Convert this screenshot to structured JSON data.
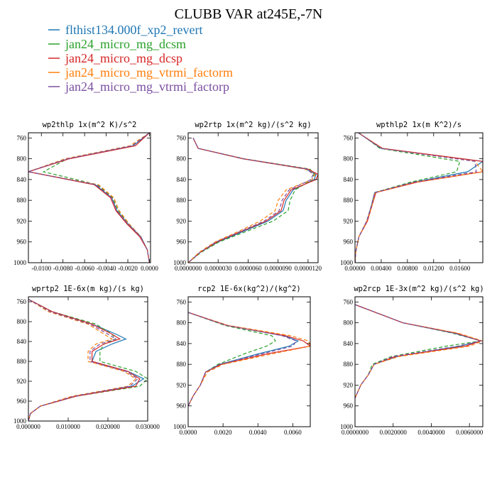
{
  "title": "CLUBB VAR at245E,-7N",
  "legend": [
    {
      "label": "flthist134.000f_xp2_revert",
      "color": "#1f77b4"
    },
    {
      "label": "jan24_micro_mg_dcsm",
      "color": "#2ca02c"
    },
    {
      "label": "jan24_micro_mg_dcsp",
      "color": "#d62728"
    },
    {
      "label": "jan24_micro_mg_vtrmi_factorm",
      "color": "#ff7f0e"
    },
    {
      "label": "jan24_micro_mg_vtrmi_factorp",
      "color": "#7b4fa0"
    }
  ],
  "chart_data": [
    {
      "type": "line",
      "title": "wp2thlp  1x(m^2 K)/s^2",
      "ylim": [
        1000,
        750
      ],
      "yticks": [
        {
          "v": 760,
          "l": "760"
        },
        {
          "v": 800,
          "l": "800"
        },
        {
          "v": 840,
          "l": "840"
        },
        {
          "v": 880,
          "l": "880"
        },
        {
          "v": 920,
          "l": "920"
        },
        {
          "v": 960,
          "l": "960"
        },
        {
          "v": 1000,
          "l": "1000"
        }
      ],
      "xlim": [
        -0.0112,
        0.0001
      ],
      "xticks": [
        {
          "v": -0.01,
          "l": "-0.0100"
        },
        {
          "v": -0.008,
          "l": "-0.0080"
        },
        {
          "v": -0.006,
          "l": "-0.0060"
        },
        {
          "v": -0.004,
          "l": "-0.0040"
        },
        {
          "v": -0.002,
          "l": "-0.0020"
        },
        {
          "v": 0.0,
          "l": "0.0000"
        }
      ],
      "y": [
        750,
        775,
        800,
        825,
        850,
        875,
        900,
        925,
        950,
        975,
        1000
      ],
      "series": [
        {
          "x": [
            0.0,
            -0.0015,
            -0.0075,
            -0.0112,
            -0.005,
            -0.0035,
            -0.003,
            -0.002,
            -0.0008,
            -0.0002,
            0.0
          ]
        },
        {
          "x": [
            0.0,
            -0.0016,
            -0.0076,
            -0.0098,
            -0.0048,
            -0.0034,
            -0.0029,
            -0.0019,
            -0.0008,
            -0.0002,
            0.0
          ]
        },
        {
          "x": [
            0.0,
            -0.0013,
            -0.0074,
            -0.0112,
            -0.0051,
            -0.0036,
            -0.0031,
            -0.0021,
            -0.0009,
            -0.0002,
            0.0
          ]
        },
        {
          "x": [
            0.0,
            -0.0018,
            -0.0078,
            -0.0112,
            -0.0047,
            -0.0033,
            -0.0028,
            -0.0019,
            -0.0008,
            -0.0002,
            0.0
          ]
        },
        {
          "x": [
            0.0,
            -0.0016,
            -0.0076,
            -0.0112,
            -0.0049,
            -0.0035,
            -0.003,
            -0.002,
            -0.0008,
            -0.0002,
            0.0
          ]
        }
      ]
    },
    {
      "type": "line",
      "title": "wp2rtp  1x(m^2 kg)/(s^2 kg)",
      "ylim": [
        1000,
        750
      ],
      "yticks": [
        {
          "v": 760,
          "l": "760"
        },
        {
          "v": 800,
          "l": "800"
        },
        {
          "v": 840,
          "l": "840"
        },
        {
          "v": 880,
          "l": "880"
        },
        {
          "v": 920,
          "l": "920"
        },
        {
          "v": 960,
          "l": "960"
        },
        {
          "v": 1000,
          "l": "1000"
        }
      ],
      "xlim": [
        0.0,
        1.3e-05
      ],
      "xticks": [
        {
          "v": 0.0,
          "l": "0.0000000"
        },
        {
          "v": 3e-06,
          "l": "0.0000030"
        },
        {
          "v": 6e-06,
          "l": "0.0000060"
        },
        {
          "v": 9e-06,
          "l": "0.0000090"
        },
        {
          "v": 1.2e-05,
          "l": "0.0000120"
        }
      ],
      "y": [
        760,
        780,
        800,
        820,
        830,
        840,
        860,
        880,
        900,
        920,
        940,
        960,
        980,
        1000
      ],
      "series": [
        {
          "x": [
            5e-07,
            1e-06,
            5.5e-06,
            1.18e-05,
            1.28e-05,
            1.26e-05,
            1.05e-05,
            9.8e-06,
            9.5e-06,
            8e-06,
            5.5e-06,
            3e-06,
            1.2e-06,
            0.0
          ]
        },
        {
          "x": [
            5e-07,
            1e-06,
            5.6e-06,
            1.22e-05,
            1.26e-05,
            1.24e-05,
            1.07e-05,
            1.02e-05,
            1e-05,
            8.5e-06,
            5.8e-06,
            3.1e-06,
            1.3e-06,
            0.0
          ]
        },
        {
          "x": [
            5e-07,
            1e-06,
            5.5e-06,
            1.2e-05,
            1.3e-05,
            1.28e-05,
            1.03e-05,
            9.6e-06,
            9.3e-06,
            7.8e-06,
            5.3e-06,
            2.9e-06,
            1.2e-06,
            0.0
          ]
        },
        {
          "x": [
            5e-07,
            1e-06,
            5.4e-06,
            1.17e-05,
            1.27e-05,
            1.24e-05,
            9.8e-06,
            9e-06,
            8.7e-06,
            7.2e-06,
            5e-06,
            2.7e-06,
            1.1e-06,
            0.0
          ]
        },
        {
          "x": [
            5e-07,
            1e-06,
            5.5e-06,
            1.19e-05,
            1.25e-05,
            1.23e-05,
            1.01e-05,
            9.4e-06,
            9.1e-06,
            7.6e-06,
            5.2e-06,
            2.8e-06,
            1.2e-06,
            0.0
          ]
        }
      ]
    },
    {
      "type": "line",
      "title": "wpthlp2  1x(m K^2)/s",
      "ylim": [
        1000,
        750
      ],
      "yticks": [
        {
          "v": 760,
          "l": "760"
        },
        {
          "v": 800,
          "l": "800"
        },
        {
          "v": 840,
          "l": "840"
        },
        {
          "v": 880,
          "l": "880"
        },
        {
          "v": 920,
          "l": "920"
        },
        {
          "v": 960,
          "l": "960"
        },
        {
          "v": 1000,
          "l": "1000"
        }
      ],
      "xlim": [
        0.0,
        0.0195
      ],
      "xticks": [
        {
          "v": 0.0,
          "l": "0.00000"
        },
        {
          "v": 0.004,
          "l": "0.00400"
        },
        {
          "v": 0.008,
          "l": "0.00800"
        },
        {
          "v": 0.012,
          "l": "0.01200"
        },
        {
          "v": 0.016,
          "l": "0.01600"
        }
      ],
      "y": [
        750,
        780,
        805,
        825,
        845,
        865,
        890,
        920,
        950,
        980,
        1000
      ],
      "series": [
        {
          "x": [
            0.0005,
            0.004,
            0.0195,
            0.0172,
            0.009,
            0.003,
            0.0025,
            0.0018,
            0.0006,
            0.0001,
            0.0
          ]
        },
        {
          "x": [
            0.0006,
            0.0038,
            0.016,
            0.0155,
            0.0085,
            0.003,
            0.0025,
            0.0018,
            0.0006,
            0.0001,
            0.0
          ]
        },
        {
          "x": [
            0.0005,
            0.0042,
            0.0195,
            0.0195,
            0.0095,
            0.0032,
            0.0026,
            0.0019,
            0.0006,
            0.0001,
            0.0
          ]
        },
        {
          "x": [
            0.0005,
            0.0041,
            0.0183,
            0.0195,
            0.0092,
            0.0031,
            0.0026,
            0.0018,
            0.0006,
            0.0001,
            0.0
          ]
        },
        {
          "x": [
            0.0005,
            0.004,
            0.0183,
            0.0185,
            0.009,
            0.003,
            0.0025,
            0.0018,
            0.0006,
            0.0001,
            0.0
          ]
        }
      ]
    },
    {
      "type": "line",
      "title": "wprtp2  1E-6x(m kg)/(s kg)",
      "ylim": [
        1000,
        750
      ],
      "yticks": [
        {
          "v": 760,
          "l": "760"
        },
        {
          "v": 800,
          "l": "800"
        },
        {
          "v": 840,
          "l": "840"
        },
        {
          "v": 880,
          "l": "880"
        },
        {
          "v": 920,
          "l": "920"
        },
        {
          "v": 960,
          "l": "960"
        },
        {
          "v": 1000,
          "l": "1000"
        }
      ],
      "xlim": [
        0.0,
        0.03
      ],
      "xticks": [
        {
          "v": 0.0,
          "l": "0.000000"
        },
        {
          "v": 0.01,
          "l": "0.010000"
        },
        {
          "v": 0.02,
          "l": "0.020000"
        },
        {
          "v": 0.03,
          "l": "0.030000"
        }
      ],
      "y": [
        755,
        780,
        805,
        825,
        835,
        845,
        860,
        880,
        900,
        915,
        930,
        950,
        970,
        985,
        1000
      ],
      "series": [
        {
          "x": [
            0.0,
            0.006,
            0.016,
            0.022,
            0.0245,
            0.021,
            0.017,
            0.016,
            0.025,
            0.029,
            0.026,
            0.012,
            0.003,
            0.0005,
            0.0
          ]
        },
        {
          "x": [
            0.0,
            0.006,
            0.017,
            0.021,
            0.022,
            0.019,
            0.018,
            0.018,
            0.027,
            0.03,
            0.028,
            0.012,
            0.003,
            0.0005,
            0.0
          ]
        },
        {
          "x": [
            0.0,
            0.006,
            0.016,
            0.021,
            0.023,
            0.019,
            0.016,
            0.016,
            0.025,
            0.028,
            0.027,
            0.012,
            0.003,
            0.0005,
            0.0
          ]
        },
        {
          "x": [
            0.0,
            0.005,
            0.015,
            0.019,
            0.021,
            0.017,
            0.015,
            0.015,
            0.024,
            0.027,
            0.025,
            0.011,
            0.003,
            0.0005,
            0.0
          ]
        },
        {
          "x": [
            0.0,
            0.0055,
            0.0155,
            0.02,
            0.022,
            0.018,
            0.0155,
            0.0155,
            0.0245,
            0.0275,
            0.0255,
            0.0115,
            0.003,
            0.0005,
            0.0
          ]
        }
      ]
    },
    {
      "type": "line",
      "title": "rcp2  1E-6x(kg^2)/(kg^2)",
      "ylim": [
        1000,
        750
      ],
      "yticks": [
        {
          "v": 760,
          "l": "760"
        },
        {
          "v": 800,
          "l": "800"
        },
        {
          "v": 840,
          "l": "840"
        },
        {
          "v": 880,
          "l": "880"
        },
        {
          "v": 920,
          "l": "920"
        },
        {
          "v": 960,
          "l": "960"
        },
        {
          "v": 1000,
          "l": "1000"
        }
      ],
      "xlim": [
        0.0,
        0.007
      ],
      "xticks": [
        {
          "v": 0.0,
          "l": "0.0000"
        },
        {
          "v": 0.002,
          "l": "0.0020"
        },
        {
          "v": 0.004,
          "l": "0.0040"
        },
        {
          "v": 0.006,
          "l": "0.0060"
        }
      ],
      "y": [
        780,
        805,
        825,
        835,
        845,
        860,
        880,
        895,
        920,
        940,
        960
      ],
      "series": [
        {
          "x": [
            0.0,
            0.0022,
            0.0055,
            0.0063,
            0.0058,
            0.004,
            0.0018,
            0.001,
            0.0007,
            0.0003,
            0.0
          ]
        },
        {
          "x": [
            0.0,
            0.0021,
            0.0048,
            0.005,
            0.0045,
            0.0032,
            0.0017,
            0.001,
            0.0007,
            0.0003,
            0.0
          ]
        },
        {
          "x": [
            0.0,
            0.0022,
            0.0056,
            0.0066,
            0.007,
            0.0045,
            0.0019,
            0.001,
            0.0007,
            0.0003,
            0.0
          ]
        },
        {
          "x": [
            0.0,
            0.0023,
            0.0059,
            0.0069,
            0.007,
            0.0048,
            0.002,
            0.0011,
            0.0007,
            0.0003,
            0.0
          ]
        },
        {
          "x": [
            0.0,
            0.0022,
            0.0054,
            0.0062,
            0.006,
            0.0042,
            0.0018,
            0.001,
            0.0007,
            0.0003,
            0.0
          ]
        }
      ]
    },
    {
      "type": "line",
      "title": "wp2rcp  1E-3x(m^2 kg)/(s^2 kg)",
      "ylim": [
        1000,
        750
      ],
      "yticks": [
        {
          "v": 760,
          "l": "760"
        },
        {
          "v": 800,
          "l": "800"
        },
        {
          "v": 840,
          "l": "840"
        },
        {
          "v": 880,
          "l": "880"
        },
        {
          "v": 920,
          "l": "920"
        },
        {
          "v": 960,
          "l": "960"
        },
        {
          "v": 1000,
          "l": "1000"
        }
      ],
      "xlim": [
        0.0,
        0.0067
      ],
      "xticks": [
        {
          "v": 0.0,
          "l": "0.0000000"
        },
        {
          "v": 0.002,
          "l": "0.0020000"
        },
        {
          "v": 0.004,
          "l": "0.0040000"
        },
        {
          "v": 0.006,
          "l": "0.0060000"
        }
      ],
      "y": [
        765,
        800,
        820,
        835,
        845,
        865,
        880,
        900,
        920,
        945
      ],
      "series": [
        {
          "x": [
            0.0,
            0.0025,
            0.0052,
            0.0066,
            0.0055,
            0.0022,
            0.001,
            0.0007,
            0.0003,
            0.0
          ]
        },
        {
          "x": [
            0.0,
            0.0025,
            0.0051,
            0.0066,
            0.0048,
            0.0019,
            0.0009,
            0.0007,
            0.0003,
            0.0
          ]
        },
        {
          "x": [
            0.0,
            0.0025,
            0.0053,
            0.0066,
            0.0058,
            0.0021,
            0.001,
            0.0007,
            0.0003,
            0.0
          ]
        },
        {
          "x": [
            0.0,
            0.0025,
            0.0054,
            0.0067,
            0.006,
            0.0023,
            0.001,
            0.0007,
            0.0003,
            0.0
          ]
        },
        {
          "x": [
            0.0,
            0.0025,
            0.0052,
            0.0066,
            0.0054,
            0.002,
            0.001,
            0.0007,
            0.0003,
            0.0
          ]
        }
      ]
    }
  ]
}
